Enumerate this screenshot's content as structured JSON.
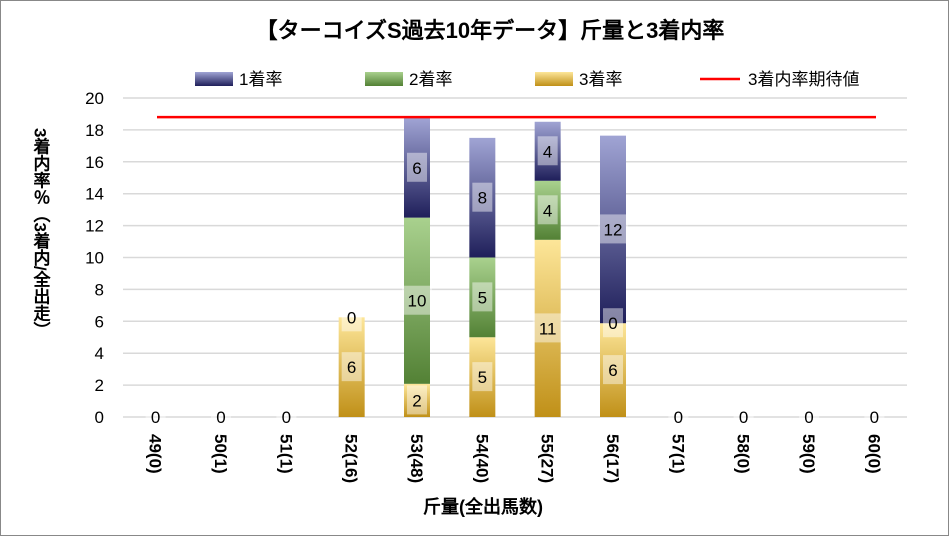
{
  "chart_data": {
    "type": "bar",
    "stacked": true,
    "title": "【ターコイズS過去10年データ】斤量と3着内率",
    "xlabel": "斤量(全出馬数)",
    "ylabel": "3着内率％（3着内/全出走）",
    "ylim": [
      0,
      20
    ],
    "yticks": [
      0,
      2,
      4,
      6,
      8,
      10,
      12,
      14,
      16,
      18,
      20
    ],
    "grid": true,
    "legend_position": "top",
    "categories": [
      "49(0)",
      "50(1)",
      "51(1)",
      "52(16)",
      "53(48)",
      "54(40)",
      "55(27)",
      "56(17)",
      "57(1)",
      "58(0)",
      "59(0)",
      "60(0)"
    ],
    "series": [
      {
        "name": "3着率",
        "values": [
          0,
          0,
          0,
          6.25,
          2.08,
          5.0,
          11.11,
          5.88,
          0,
          0,
          0,
          0
        ],
        "colors": [
          "#c09018",
          "#fde699"
        ]
      },
      {
        "name": "2着率",
        "values": [
          0,
          0,
          0,
          0,
          10.42,
          5.0,
          3.7,
          0,
          0,
          0,
          0,
          0
        ],
        "colors": [
          "#538135",
          "#a9d18e"
        ]
      },
      {
        "name": "1着率",
        "values": [
          0,
          0,
          0,
          0,
          6.25,
          7.5,
          3.7,
          11.76,
          0,
          0,
          0,
          0
        ],
        "colors": [
          "#1f1f5a",
          "#a0a4d4"
        ]
      }
    ],
    "legend_order": [
      "1着率",
      "2着率",
      "3着率",
      "3着内率期待値"
    ],
    "reference_line": {
      "name": "3着内率期待値",
      "value": 18.8,
      "color": "#ff0000"
    }
  }
}
